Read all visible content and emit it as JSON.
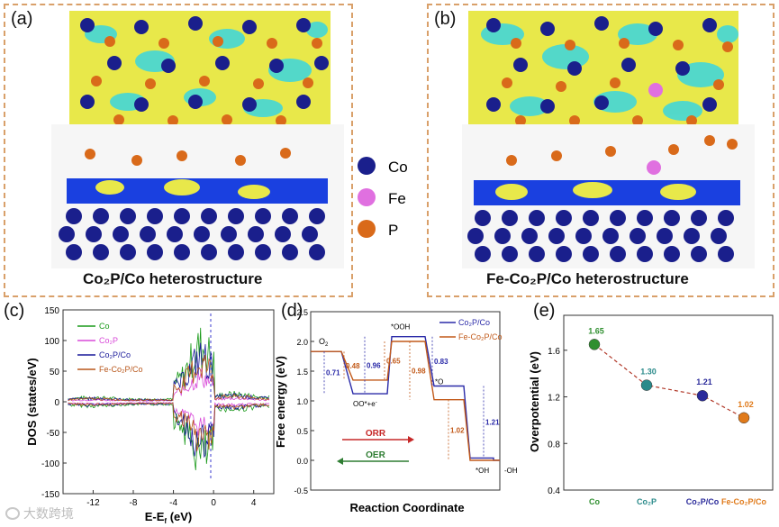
{
  "panels": {
    "a": {
      "label": "(a)",
      "caption": "Co₂P/Co heterostructure"
    },
    "b": {
      "label": "(b)",
      "caption": "Fe-Co₂P/Co heterostructure"
    },
    "c": {
      "label": "(c)"
    },
    "d": {
      "label": "(d)"
    },
    "e": {
      "label": "(e)"
    }
  },
  "atom_legend": [
    {
      "name": "Co",
      "color": "#1a1f8c"
    },
    {
      "name": "Fe",
      "color": "#e070e0"
    },
    {
      "name": "P",
      "color": "#d96a1a"
    }
  ],
  "watermark": "大数跨境",
  "colors": {
    "co": "#1a1f8c",
    "fe": "#e070e0",
    "p": "#d96a1a",
    "charge_yellow": "#e8e84a",
    "charge_cyan": "#3ad6e0",
    "box_border": "#d9a06a"
  },
  "chart_data": [
    {
      "type": "line",
      "id": "dos",
      "ylabel": "DOS (states/eV)",
      "xlabel": "E-E",
      "xlabel_sub": "f",
      "xlabel_unit": " (eV)",
      "xlim": [
        -15,
        6
      ],
      "ylim": [
        -150,
        150
      ],
      "xticks": [
        -12,
        -8,
        -4,
        0,
        4
      ],
      "yticks": [
        -150,
        -100,
        -50,
        0,
        50,
        100,
        150
      ],
      "series": [
        {
          "name": "Co",
          "color": "#1a9a1a"
        },
        {
          "name": "Co₂P",
          "color": "#d84ad8"
        },
        {
          "name": "Co₂P/Co",
          "color": "#1a1a9a"
        },
        {
          "name": "Fe-Co₂P/Co",
          "color": "#b8561a"
        }
      ]
    },
    {
      "type": "line",
      "id": "free_energy",
      "ylabel": "Free energy (eV)",
      "xlabel": "Reaction Coordinate",
      "ylim": [
        -0.5,
        2.5
      ],
      "yticks": [
        -0.5,
        0.0,
        0.5,
        1.0,
        1.5,
        2.0,
        2.5
      ],
      "states": [
        "O2",
        "OO*+e-",
        "*OOH",
        "*O",
        "*OH",
        "-OH"
      ],
      "state_labels": {
        "o2": "O",
        "o2_sub": "2",
        "oo": "OO*+e",
        "oo_sup": "-",
        "ooh": "*OOH",
        "o": "*O",
        "oh": "*OH",
        "moh": "-OH"
      },
      "series": [
        {
          "name": "Co₂P/Co",
          "color": "#2a2aa8",
          "values": [
            1.83,
            1.12,
            2.08,
            1.25,
            0.04,
            0.0
          ]
        },
        {
          "name": "Fe-Co₂P/Co",
          "color": "#c25a1a",
          "values": [
            1.83,
            1.35,
            2.0,
            1.02,
            0.0,
            0.0
          ]
        }
      ],
      "annotations": [
        "0.71",
        "0.96",
        "0.83",
        "1.21",
        "0.48",
        "0.65",
        "0.98",
        "1.02"
      ],
      "arrows": [
        {
          "label": "ORR",
          "color": "#c62828",
          "direction": "right"
        },
        {
          "label": "OER",
          "color": "#2e7d32",
          "direction": "left"
        }
      ]
    },
    {
      "type": "scatter",
      "id": "overpotential",
      "ylabel": "Overpotential (eV)",
      "ylim": [
        0.4,
        1.9
      ],
      "yticks": [
        0.4,
        0.8,
        1.2,
        1.6
      ],
      "categories": [
        "Co",
        "Co₂P",
        "Co₂P/Co",
        "Fe-Co₂P/Co"
      ],
      "values": [
        1.65,
        1.3,
        1.21,
        1.02
      ],
      "value_labels": [
        "1.65",
        "1.30",
        "1.21",
        "1.02"
      ],
      "colors": [
        "#2f8f2f",
        "#2a8a8a",
        "#2a2a9a",
        "#e07a1a"
      ]
    }
  ]
}
